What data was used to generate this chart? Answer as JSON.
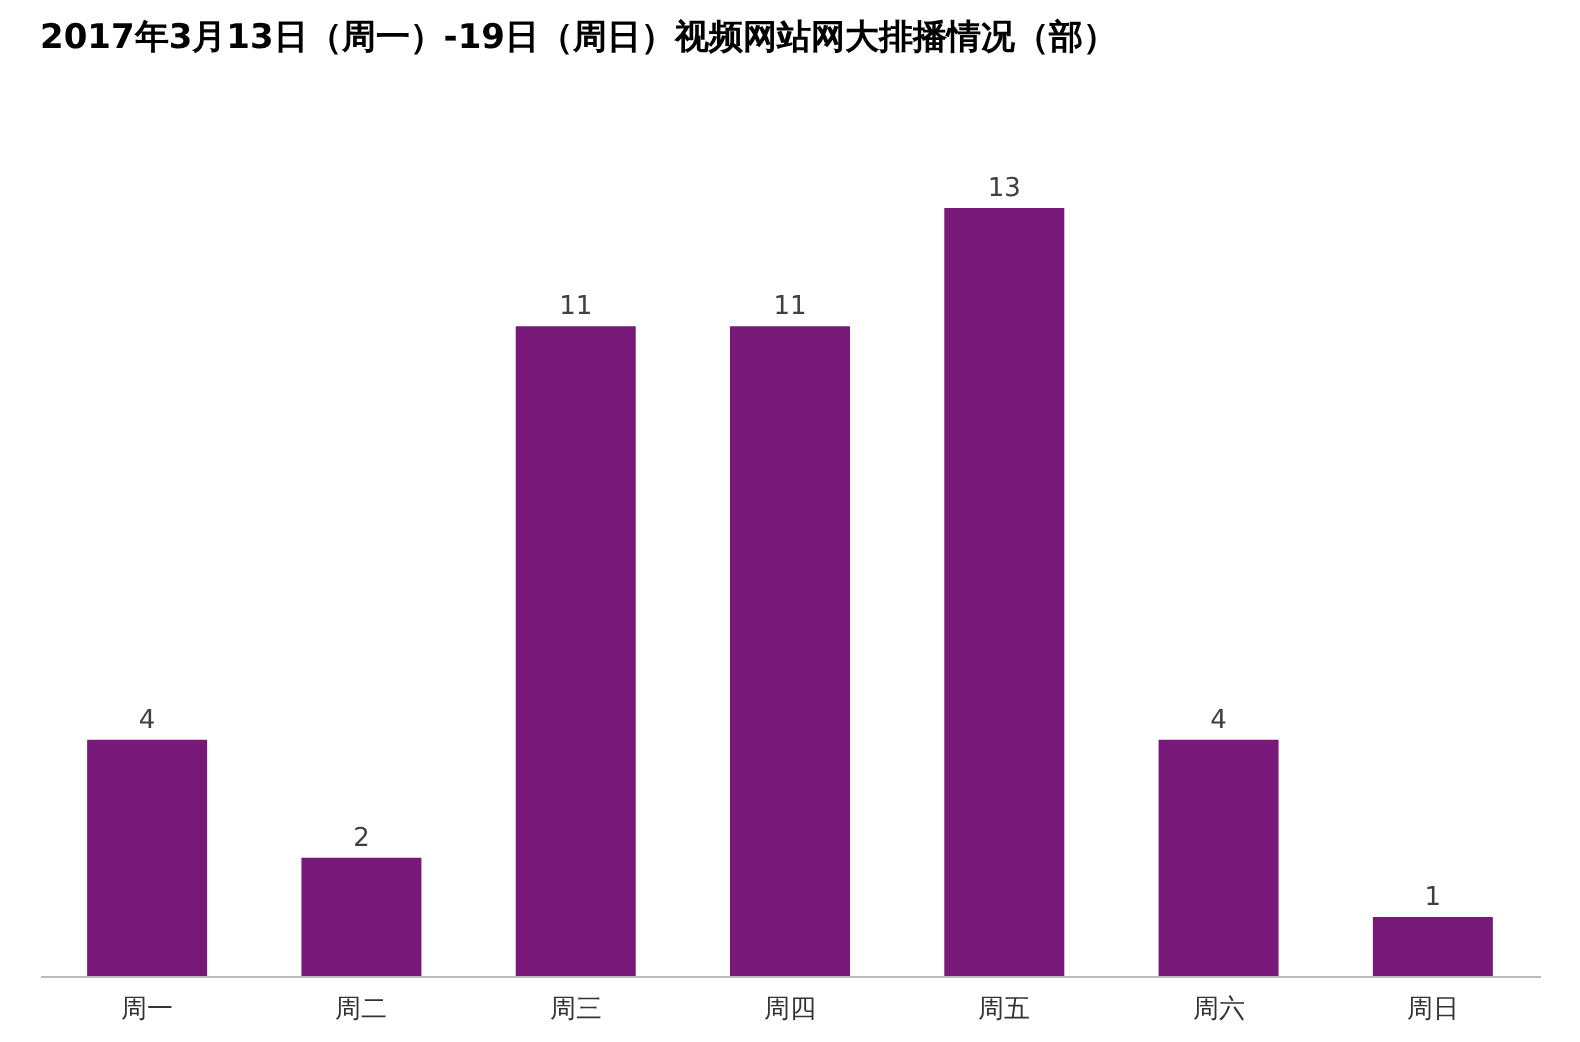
{
  "chart_data": {
    "type": "bar",
    "title": "2017年3月13日（周一）-19日（周日）视频网站网大排播情况（部）",
    "categories": [
      "周一",
      "周二",
      "周三",
      "周四",
      "周五",
      "周六",
      "周日"
    ],
    "values": [
      4,
      2,
      11,
      11,
      13,
      4,
      1
    ],
    "color": "#781878",
    "data_labels": true
  }
}
